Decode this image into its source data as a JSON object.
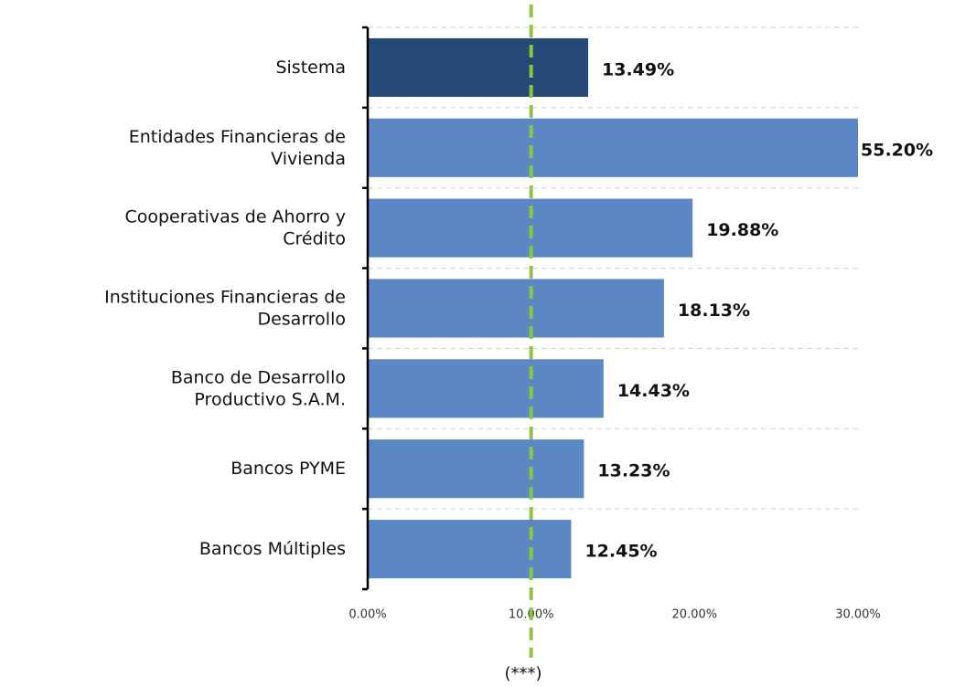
{
  "chart_data": {
    "type": "bar",
    "orientation": "horizontal",
    "categories": [
      "Sistema",
      "Entidades Financieras de\nVivienda",
      "Cooperativas de Ahorro y\nCrédito",
      "Instituciones Financieras de\nDesarrollo",
      "Banco de Desarrollo\nProductivo S.A.M.",
      "Bancos PYME",
      "Bancos Múltiples"
    ],
    "values": [
      13.49,
      55.2,
      19.88,
      18.13,
      14.43,
      13.23,
      12.45
    ],
    "value_labels": [
      "13.49%",
      "55.20%",
      "19.88%",
      "18.13%",
      "14.43%",
      "13.23%",
      "12.45%"
    ],
    "colors": [
      "#264a78",
      "#5b87c5",
      "#5b87c5",
      "#5b87c5",
      "#5b87c5",
      "#5b87c5",
      "#5b87c5"
    ],
    "xlim": [
      0,
      30
    ],
    "xticks": [
      {
        "value": 0,
        "label": "0.00%"
      },
      {
        "value": 10,
        "label": "10.00%"
      },
      {
        "value": 20,
        "label": "20.00%"
      },
      {
        "value": 30,
        "label": "30.00%"
      }
    ],
    "reference_line": {
      "value": 10,
      "color": "#8cc63f"
    },
    "annotation": "(***)",
    "grid": true
  }
}
